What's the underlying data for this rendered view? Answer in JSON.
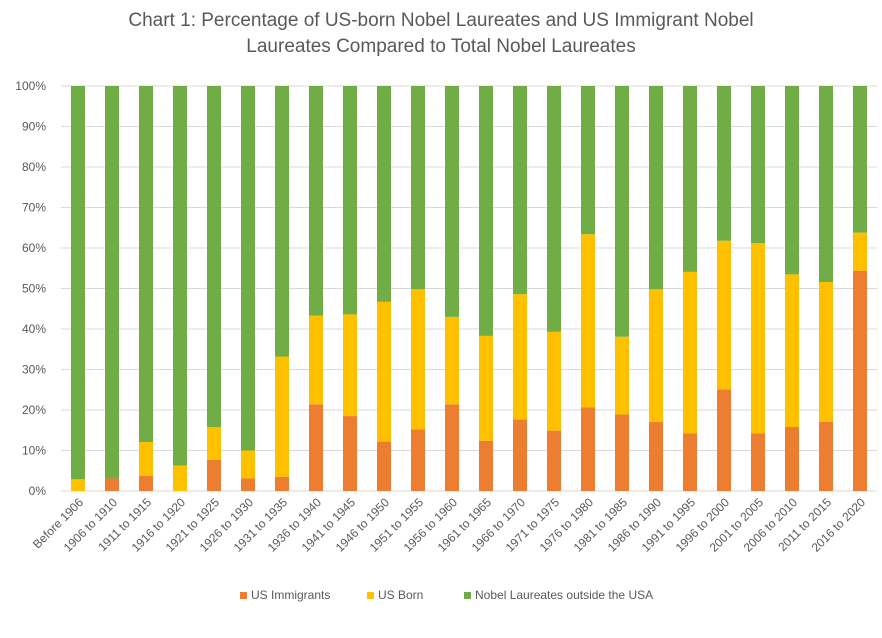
{
  "chart_data": {
    "type": "bar",
    "stacked": true,
    "percent_stacked": true,
    "title": "Chart 1: Percentage of US-born Nobel Laureates and US Immigrant Nobel Laureates Compared to Total Nobel Laureates",
    "title_lines": [
      "Chart 1: Percentage of US-born Nobel Laureates and US Immigrant Nobel",
      "Laureates Compared to Total Nobel Laureates"
    ],
    "xlabel": "",
    "ylabel": "",
    "ylim": [
      0,
      100
    ],
    "yticks": [
      "0%",
      "10%",
      "20%",
      "30%",
      "40%",
      "50%",
      "60%",
      "70%",
      "80%",
      "90%",
      "100%"
    ],
    "grid": true,
    "legend_position": "bottom",
    "categories": [
      "Before 1906",
      "1906 to 1910",
      "1911 to 1915",
      "1916 to 1920",
      "1921 to 1925",
      "1926 to 1930",
      "1931 to 1935",
      "1936 to 1940",
      "1941 to 1945",
      "1946 to 1950",
      "1951 to 1955",
      "1956 to 1960",
      "1961 to 1965",
      "1966 to 1970",
      "1971 to 1975",
      "1976 to 1980",
      "1981 to 1985",
      "1986 to 1990",
      "1991 to 1995",
      "1996 to 2000",
      "2001 to 2005",
      "2006 to 2010",
      "2011 to 2015",
      "2016 to 2020"
    ],
    "series": [
      {
        "name": "US Immigrants",
        "color": "#ED7D31",
        "values": [
          0,
          3.1,
          3.7,
          0,
          7.7,
          3.1,
          3.5,
          21.4,
          18.5,
          12.2,
          15.2,
          21.4,
          12.4,
          17.7,
          14.9,
          20.7,
          18.9,
          17.1,
          14.2,
          25.1,
          14.2,
          15.8,
          17.1,
          54.4
        ]
      },
      {
        "name": "US Born",
        "color": "#FFC000",
        "values": [
          2.9,
          0,
          8.4,
          6.3,
          8.1,
          6.9,
          29.7,
          21.9,
          25.1,
          34.5,
          34.6,
          21.6,
          25.9,
          30.9,
          24.4,
          42.7,
          19.2,
          32.7,
          39.9,
          36.7,
          47.0,
          37.7,
          34.5,
          9.4
        ]
      },
      {
        "name": "Nobel Laureates outside the USA",
        "color": "#70AD47",
        "values": [
          97.1,
          96.9,
          87.9,
          93.7,
          84.2,
          90.0,
          66.8,
          56.7,
          56.4,
          53.3,
          50.2,
          57.0,
          61.7,
          51.4,
          60.7,
          36.6,
          61.9,
          50.2,
          45.9,
          38.2,
          38.8,
          46.5,
          48.4,
          36.2
        ]
      }
    ]
  }
}
